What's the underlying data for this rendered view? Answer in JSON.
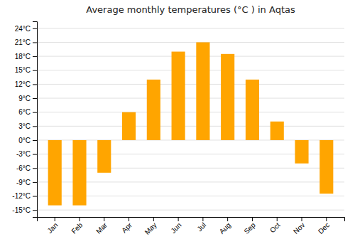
{
  "chart_data": {
    "type": "bar",
    "title": "Average monthly temperatures (°C ) in Aqtas",
    "categories": [
      "Jan",
      "Feb",
      "Mar",
      "Apr",
      "May",
      "Jun",
      "Jul",
      "Aug",
      "Sep",
      "Oct",
      "Nov",
      "Dec"
    ],
    "values": [
      -14,
      -14,
      -7,
      6,
      13,
      19,
      21,
      18.5,
      13,
      4,
      -5,
      -11.5
    ],
    "color": "#FFA500",
    "ylim": [
      -16.5,
      25.5
    ],
    "yticks": [
      {
        "value": -15,
        "label": "-15°C"
      },
      {
        "value": -12,
        "label": "-12°C"
      },
      {
        "value": -9,
        "label": "-9°C"
      },
      {
        "value": -6,
        "label": "-6°C"
      },
      {
        "value": -3,
        "label": "-3°C"
      },
      {
        "value": 0,
        "label": "0°C"
      },
      {
        "value": 3,
        "label": "3°C"
      },
      {
        "value": 6,
        "label": "6°C"
      },
      {
        "value": 9,
        "label": "9°C"
      },
      {
        "value": 12,
        "label": "12°C"
      },
      {
        "value": 15,
        "label": "15°C"
      },
      {
        "value": 18,
        "label": "18°C"
      },
      {
        "value": 21,
        "label": "21°C"
      },
      {
        "value": 24,
        "label": "24°C"
      }
    ],
    "grid": true
  }
}
